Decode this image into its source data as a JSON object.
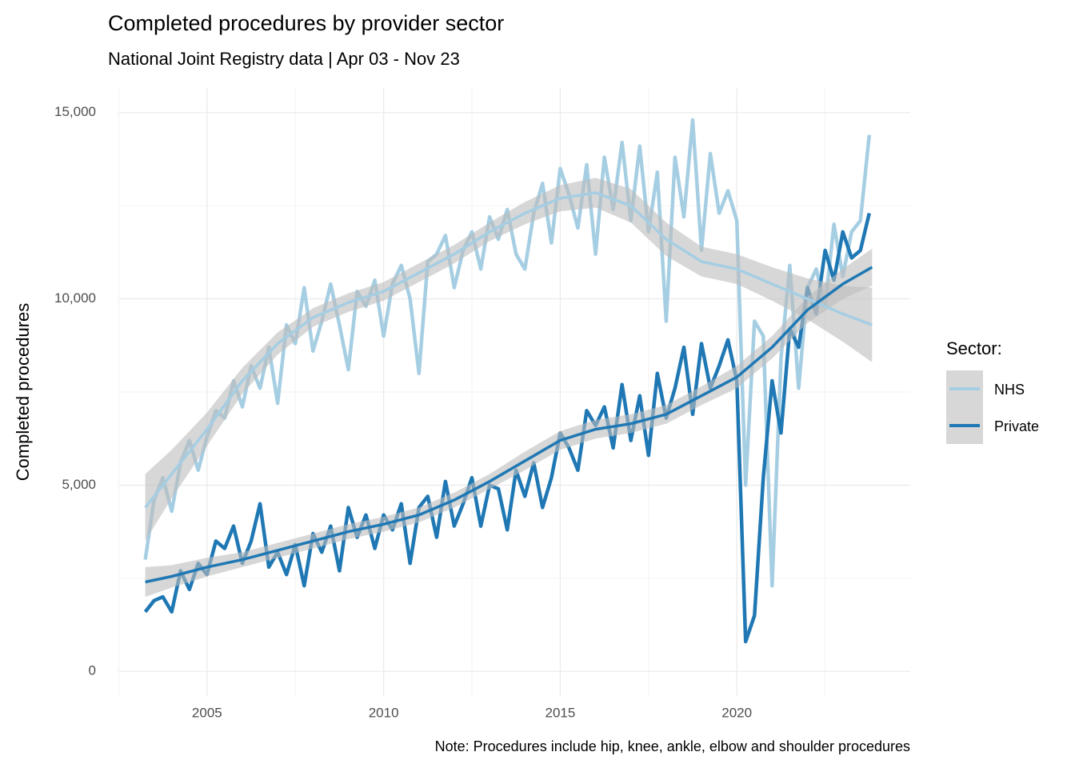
{
  "chart_data": {
    "type": "line",
    "title": "Completed procedures by provider sector",
    "subtitle": "National Joint Registry data | Apr 03 - Nov 23",
    "y_label": "Completed procedures",
    "note": "Note: Procedures include hip, knee, ankle, elbow and shoulder procedures",
    "legend_title": "Sector:",
    "legend_position": "right",
    "grid": true,
    "xlim": [
      2002.49,
      2024.91
    ],
    "ylim": [
      -660,
      15660
    ],
    "xticks": [
      2005,
      2010,
      2015,
      2020
    ],
    "yticks": [
      0,
      {
        "value": 5000,
        "label": "5,000"
      },
      {
        "value": 10000,
        "label": "10,000"
      },
      {
        "value": 15000,
        "label": "15,000"
      }
    ],
    "x_minor_grid": [
      2002.5,
      2007.5,
      2012.5,
      2017.5,
      2022.5
    ],
    "y_minor_grid": [
      2500,
      7500,
      12500
    ],
    "band_color": "#bdbdbd",
    "x": [
      2003.25,
      2003.5,
      2003.75,
      2004,
      2004.25,
      2004.5,
      2004.75,
      2005,
      2005.25,
      2005.5,
      2005.75,
      2006,
      2006.25,
      2006.5,
      2006.75,
      2007,
      2007.25,
      2007.5,
      2007.75,
      2008,
      2008.25,
      2008.5,
      2008.75,
      2009,
      2009.25,
      2009.5,
      2009.75,
      2010,
      2010.25,
      2010.5,
      2010.75,
      2011,
      2011.25,
      2011.5,
      2011.75,
      2012,
      2012.25,
      2012.5,
      2012.75,
      2013,
      2013.25,
      2013.5,
      2013.75,
      2014,
      2014.25,
      2014.5,
      2014.75,
      2015,
      2015.25,
      2015.5,
      2015.75,
      2016,
      2016.25,
      2016.5,
      2016.75,
      2017,
      2017.25,
      2017.5,
      2017.75,
      2018,
      2018.25,
      2018.5,
      2018.75,
      2019,
      2019.25,
      2019.5,
      2019.75,
      2020,
      2020.25,
      2020.5,
      2020.75,
      2021,
      2021.25,
      2021.5,
      2021.75,
      2022,
      2022.25,
      2022.5,
      2022.75,
      2023,
      2023.25,
      2023.5,
      2023.75
    ],
    "smooth_x": [
      2003.25,
      2004,
      2005,
      2006,
      2007,
      2008,
      2009,
      2010,
      2011,
      2012,
      2013,
      2014,
      2015,
      2016,
      2017,
      2018,
      2019,
      2020,
      2021,
      2022,
      2023,
      2023.83
    ],
    "series": [
      {
        "name": "NHS",
        "color": "#a6cee3",
        "values": [
          3000,
          4600,
          5200,
          4300,
          5600,
          6200,
          5400,
          6300,
          7000,
          6800,
          7800,
          7100,
          8200,
          7600,
          8700,
          7200,
          9300,
          8800,
          10300,
          8600,
          9400,
          10400,
          9300,
          8100,
          10200,
          9800,
          10500,
          9000,
          10400,
          10900,
          10000,
          8000,
          11000,
          11200,
          11700,
          10300,
          11300,
          11800,
          10800,
          12200,
          11600,
          12400,
          11200,
          10800,
          12300,
          13100,
          11500,
          13500,
          12800,
          11900,
          13600,
          11200,
          13800,
          12400,
          14200,
          12100,
          14100,
          11800,
          13400,
          9400,
          13800,
          12200,
          14800,
          11300,
          13900,
          12300,
          12900,
          12100,
          5000,
          9400,
          9000,
          2300,
          8400,
          10900,
          7600,
          10300,
          10800,
          9800,
          12000,
          10600,
          11800,
          12100,
          14400
        ],
        "smooth": {
          "values": [
            4400,
            5300,
            6500,
            7800,
            8800,
            9500,
            9900,
            10200,
            10700,
            11200,
            11800,
            12300,
            12700,
            12850,
            12500,
            11600,
            11000,
            10800,
            10400,
            10000,
            9600,
            9300
          ],
          "lower": [
            3500,
            4650,
            6050,
            7450,
            8500,
            9250,
            9650,
            9950,
            10450,
            10950,
            11550,
            12000,
            12350,
            12450,
            12050,
            11150,
            10600,
            10400,
            9950,
            9450,
            8850,
            8300
          ],
          "upper": [
            5300,
            5950,
            6950,
            8150,
            9100,
            9750,
            10150,
            10450,
            10950,
            11450,
            12050,
            12600,
            13050,
            13250,
            12950,
            12050,
            11400,
            11200,
            10850,
            10550,
            10350,
            10300
          ]
        }
      },
      {
        "name": "Private",
        "color": "#1f78b4",
        "values": [
          1600,
          1900,
          2000,
          1600,
          2700,
          2200,
          2900,
          2600,
          3500,
          3300,
          3900,
          2900,
          3500,
          4500,
          2800,
          3200,
          2600,
          3400,
          2300,
          3700,
          3200,
          3900,
          2700,
          4400,
          3600,
          4200,
          3300,
          4200,
          3800,
          4500,
          2900,
          4400,
          4700,
          3600,
          5100,
          3900,
          4500,
          5200,
          3900,
          5000,
          4900,
          3800,
          5400,
          4700,
          5600,
          4400,
          5200,
          6400,
          6000,
          5400,
          7000,
          6600,
          7100,
          6000,
          7700,
          6200,
          7400,
          5800,
          8000,
          6800,
          7600,
          8700,
          6900,
          8800,
          7600,
          8200,
          8900,
          7800,
          800,
          1500,
          5200,
          7800,
          6400,
          9200,
          8700,
          10300,
          9600,
          11300,
          10500,
          11800,
          11100,
          11300,
          12300
        ],
        "smooth": {
          "values": [
            2400,
            2550,
            2800,
            3000,
            3250,
            3500,
            3750,
            3950,
            4200,
            4600,
            5100,
            5650,
            6200,
            6500,
            6650,
            6900,
            7400,
            7900,
            8700,
            9700,
            10400,
            10850
          ],
          "lower": [
            2000,
            2250,
            2550,
            2800,
            3050,
            3300,
            3550,
            3750,
            4000,
            4400,
            4900,
            5400,
            5950,
            6250,
            6400,
            6650,
            7150,
            7600,
            8400,
            9350,
            10000,
            10350
          ],
          "upper": [
            2800,
            2850,
            3050,
            3200,
            3450,
            3700,
            3950,
            4150,
            4400,
            4800,
            5300,
            5900,
            6450,
            6750,
            6900,
            7150,
            7650,
            8200,
            9000,
            10050,
            10800,
            11350
          ]
        }
      }
    ]
  }
}
